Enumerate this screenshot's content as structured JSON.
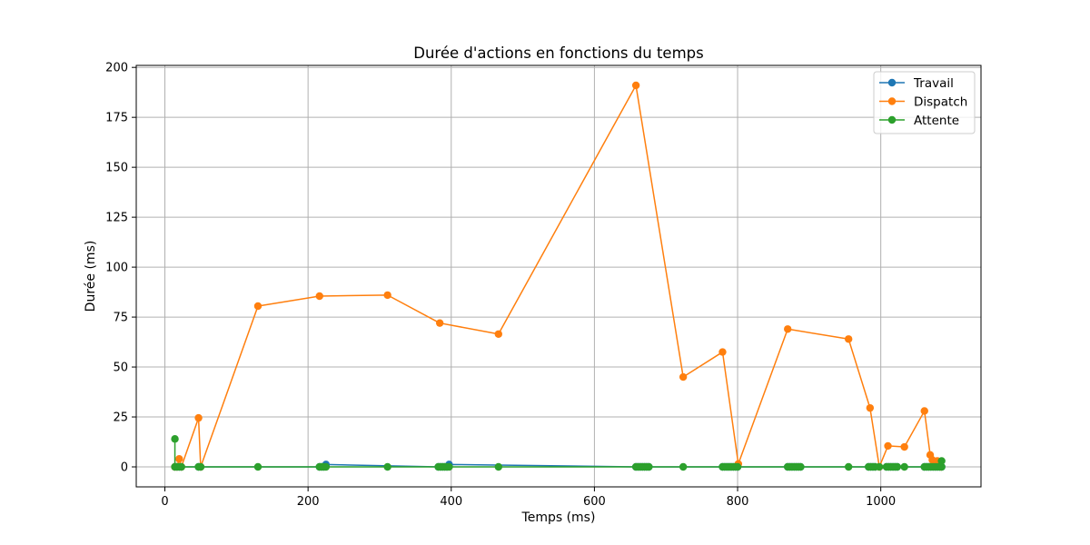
{
  "chart_data": {
    "type": "line",
    "title": "Durée d'actions en fonctions du temps",
    "xlabel": "Temps (ms)",
    "ylabel": "Durée (ms)",
    "xlim": [
      -40,
      1140
    ],
    "ylim": [
      -10,
      201
    ],
    "xticks": [
      0,
      200,
      400,
      600,
      800,
      1000
    ],
    "yticks": [
      0,
      25,
      50,
      75,
      100,
      125,
      150,
      175,
      200
    ],
    "grid": true,
    "legend_position": "upper right",
    "series": [
      {
        "name": "Travail",
        "color": "#1f77b4",
        "x": [
          14,
          17,
          20,
          23,
          47,
          50,
          216,
          219,
          222,
          225,
          382,
          385,
          388,
          391,
          394,
          397,
          658,
          661,
          664,
          667,
          670,
          673,
          676,
          779,
          782,
          785,
          788,
          791,
          794,
          797,
          800,
          870,
          873,
          876,
          879,
          882,
          885,
          888,
          983,
          986,
          989,
          992,
          1008,
          1011,
          1014,
          1017,
          1020,
          1023,
          1061,
          1064,
          1067,
          1070,
          1073,
          1076,
          1079,
          1082,
          1085
        ],
        "y": [
          0,
          0,
          0,
          0,
          0,
          0,
          0,
          0,
          0,
          1.2,
          0,
          0,
          0,
          0,
          0,
          1.2,
          0,
          0,
          0,
          0,
          0,
          0,
          0,
          0,
          0,
          0,
          0,
          0,
          0,
          0,
          0,
          0,
          0,
          0,
          0,
          0,
          0,
          0,
          0,
          0,
          0,
          0,
          0,
          0,
          0,
          0,
          0,
          0,
          0,
          0,
          0,
          0,
          0,
          0,
          0,
          0,
          0
        ]
      },
      {
        "name": "Dispatch",
        "color": "#ff7f0e",
        "x": [
          14,
          17,
          20,
          23,
          47,
          50,
          130,
          216,
          311,
          384,
          466,
          658,
          724,
          779,
          801,
          870,
          955,
          985,
          998,
          1010,
          1033,
          1061,
          1069,
          1072,
          1079,
          1084
        ],
        "y": [
          0,
          0,
          4,
          0,
          24.5,
          0,
          80.5,
          85.5,
          86,
          72,
          66.5,
          191,
          45,
          57.5,
          1.5,
          69,
          64,
          29.5,
          0,
          10.5,
          10,
          28,
          6,
          3.5,
          3,
          0
        ]
      },
      {
        "name": "Attente",
        "color": "#2ca02c",
        "x": [
          14,
          14,
          17,
          20,
          23,
          47,
          50,
          130,
          216,
          219,
          222,
          225,
          311,
          382,
          385,
          388,
          391,
          394,
          397,
          466,
          658,
          661,
          664,
          667,
          670,
          673,
          676,
          724,
          779,
          782,
          785,
          788,
          791,
          794,
          797,
          800,
          870,
          873,
          876,
          879,
          882,
          885,
          888,
          955,
          983,
          986,
          989,
          992,
          998,
          1008,
          1011,
          1014,
          1017,
          1020,
          1023,
          1033,
          1061,
          1064,
          1067,
          1070,
          1073,
          1076,
          1079,
          1082,
          1085,
          1085
        ],
        "y": [
          14,
          0,
          0,
          0,
          0,
          0,
          0,
          0,
          0,
          0,
          0,
          0,
          0,
          0,
          0,
          0,
          0,
          0,
          0,
          0,
          0,
          0,
          0,
          0,
          0,
          0,
          0,
          0,
          0,
          0,
          0,
          0,
          0,
          0,
          0,
          0,
          0,
          0,
          0,
          0,
          0,
          0,
          0,
          0,
          0,
          0,
          0,
          0,
          0,
          0,
          0,
          0,
          0,
          0,
          0,
          0,
          0,
          0,
          0,
          0,
          0,
          0,
          0,
          0,
          3,
          0
        ]
      }
    ]
  }
}
